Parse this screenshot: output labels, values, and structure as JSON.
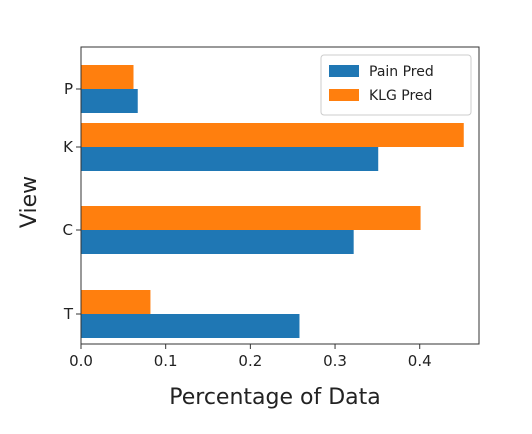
{
  "chart_data": {
    "type": "bar",
    "orientation": "horizontal",
    "categories": [
      "T",
      "C",
      "K",
      "P"
    ],
    "series": [
      {
        "name": "Pain Pred",
        "values": [
          0.258,
          0.322,
          0.351,
          0.067
        ],
        "color": "#1f77b4"
      },
      {
        "name": "KLG Pred",
        "values": [
          0.082,
          0.401,
          0.452,
          0.062
        ],
        "color": "#ff7f0e"
      }
    ],
    "xlabel": "Percentage of Data",
    "ylabel": "View",
    "xlim": [
      0,
      0.47
    ],
    "xticks": [
      "0.0",
      "0.1",
      "0.2",
      "0.3",
      "0.4"
    ],
    "grid": false,
    "legend_position": "top-right"
  }
}
